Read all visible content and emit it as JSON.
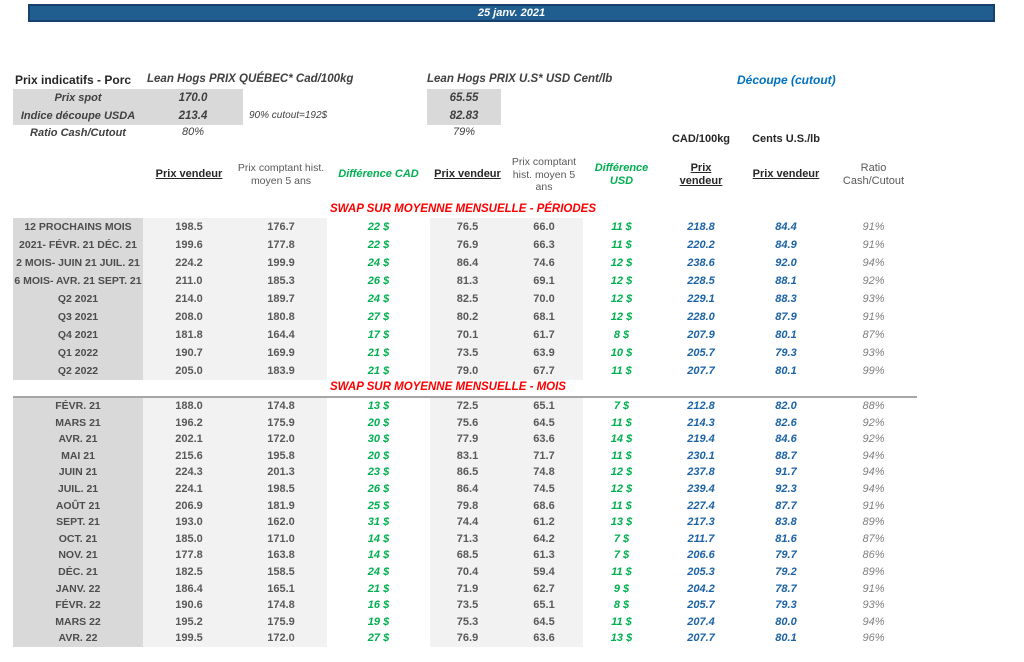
{
  "title_bar": {
    "date": "25 janv. 2021"
  },
  "summary": {
    "title": "Prix indicatifs - Porc",
    "labels": {
      "prix_spot": "Prix spot",
      "indice_decoupe": "Indice découpe USDA",
      "ratio_cash_cutout": "Ratio Cash/Cutout"
    },
    "quebec": {
      "header": "Lean Hogs PRIX QUÉBEC* Cad/100kg",
      "prix_spot": "170.0",
      "indice_decoupe": "213.4",
      "ratio": "80%",
      "note": "90% cutout=192$"
    },
    "us": {
      "header": "Lean Hogs PRIX U.S* USD Cent/lb",
      "prix_spot": "65.55",
      "indice_decoupe": "82.83",
      "ratio": "79%"
    },
    "decoupe": {
      "header": "Découpe (cutout)",
      "unit_cad": "CAD/100kg",
      "unit_us": "Cents U.S./lb"
    }
  },
  "table": {
    "column_headers": {
      "prix_vendeur": "Prix vendeur",
      "prix_comptant": "Prix comptant hist. moyen 5 ans",
      "difference_cad": "Différence CAD",
      "difference_usd": "Différence USD",
      "ratio": "Ratio Cash/Cutout"
    },
    "sections": [
      {
        "title": "SWAP SUR MOYENNE MENSUELLE - PÉRIODES",
        "rows": [
          [
            "12 PROCHAINS MOIS",
            "198.5",
            "176.7",
            "22 $",
            "76.5",
            "66.0",
            "11 $",
            "218.8",
            "84.4",
            "91%"
          ],
          [
            "2021- FÉVR. 21 DÉC. 21",
            "199.6",
            "177.8",
            "22 $",
            "76.9",
            "66.3",
            "11 $",
            "220.2",
            "84.9",
            "91%"
          ],
          [
            "2 MOIS- JUIN 21 JUIL. 21",
            "224.2",
            "199.9",
            "24 $",
            "86.4",
            "74.6",
            "12 $",
            "238.6",
            "92.0",
            "94%"
          ],
          [
            "6 MOIS- AVR. 21 SEPT. 21",
            "211.0",
            "185.3",
            "26 $",
            "81.3",
            "69.1",
            "12 $",
            "228.5",
            "88.1",
            "92%"
          ],
          [
            "Q2 2021",
            "214.0",
            "189.7",
            "24 $",
            "82.5",
            "70.0",
            "12 $",
            "229.1",
            "88.3",
            "93%"
          ],
          [
            "Q3 2021",
            "208.0",
            "180.8",
            "27 $",
            "80.2",
            "68.1",
            "12 $",
            "228.0",
            "87.9",
            "91%"
          ],
          [
            "Q4 2021",
            "181.8",
            "164.4",
            "17 $",
            "70.1",
            "61.7",
            "8 $",
            "207.9",
            "80.1",
            "87%"
          ],
          [
            "Q1 2022",
            "190.7",
            "169.9",
            "21 $",
            "73.5",
            "63.9",
            "10 $",
            "205.7",
            "79.3",
            "93%"
          ],
          [
            "Q2 2022",
            "205.0",
            "183.9",
            "21 $",
            "79.0",
            "67.7",
            "11 $",
            "207.7",
            "80.1",
            "99%"
          ]
        ]
      },
      {
        "title": "SWAP SUR MOYENNE MENSUELLE - MOIS",
        "rows": [
          [
            "FÉVR. 21",
            "188.0",
            "174.8",
            "13 $",
            "72.5",
            "65.1",
            "7 $",
            "212.8",
            "82.0",
            "88%"
          ],
          [
            "MARS 21",
            "196.2",
            "175.9",
            "20 $",
            "75.6",
            "64.5",
            "11 $",
            "214.3",
            "82.6",
            "92%"
          ],
          [
            "AVR. 21",
            "202.1",
            "172.0",
            "30 $",
            "77.9",
            "63.6",
            "14 $",
            "219.4",
            "84.6",
            "92%"
          ],
          [
            "MAI 21",
            "215.6",
            "195.8",
            "20 $",
            "83.1",
            "71.7",
            "11 $",
            "230.1",
            "88.7",
            "94%"
          ],
          [
            "JUIN 21",
            "224.3",
            "201.3",
            "23 $",
            "86.5",
            "74.8",
            "12 $",
            "237.8",
            "91.7",
            "94%"
          ],
          [
            "JUIL. 21",
            "224.1",
            "198.5",
            "26 $",
            "86.4",
            "74.5",
            "12 $",
            "239.4",
            "92.3",
            "94%"
          ],
          [
            "AOÛT 21",
            "206.9",
            "181.9",
            "25 $",
            "79.8",
            "68.6",
            "11 $",
            "227.4",
            "87.7",
            "91%"
          ],
          [
            "SEPT. 21",
            "193.0",
            "162.0",
            "31 $",
            "74.4",
            "61.2",
            "13 $",
            "217.3",
            "83.8",
            "89%"
          ],
          [
            "OCT. 21",
            "185.0",
            "171.0",
            "14 $",
            "71.3",
            "64.2",
            "7 $",
            "211.7",
            "81.6",
            "87%"
          ],
          [
            "NOV. 21",
            "177.8",
            "163.8",
            "14 $",
            "68.5",
            "61.3",
            "7 $",
            "206.6",
            "79.7",
            "86%"
          ],
          [
            "DÉC. 21",
            "182.5",
            "158.5",
            "24 $",
            "70.4",
            "59.4",
            "11 $",
            "205.3",
            "79.2",
            "89%"
          ],
          [
            "JANV. 22",
            "186.4",
            "165.1",
            "21 $",
            "71.9",
            "62.7",
            "9 $",
            "204.2",
            "78.7",
            "91%"
          ],
          [
            "FÉVR. 22",
            "190.6",
            "174.8",
            "16 $",
            "73.5",
            "65.1",
            "8 $",
            "205.7",
            "79.3",
            "93%"
          ],
          [
            "MARS 22",
            "195.2",
            "175.9",
            "19 $",
            "75.3",
            "64.5",
            "11 $",
            "207.4",
            "80.0",
            "94%"
          ],
          [
            "AVR. 22",
            "199.5",
            "172.0",
            "27 $",
            "76.9",
            "63.6",
            "13 $",
            "207.7",
            "80.1",
            "96%"
          ]
        ]
      }
    ]
  }
}
